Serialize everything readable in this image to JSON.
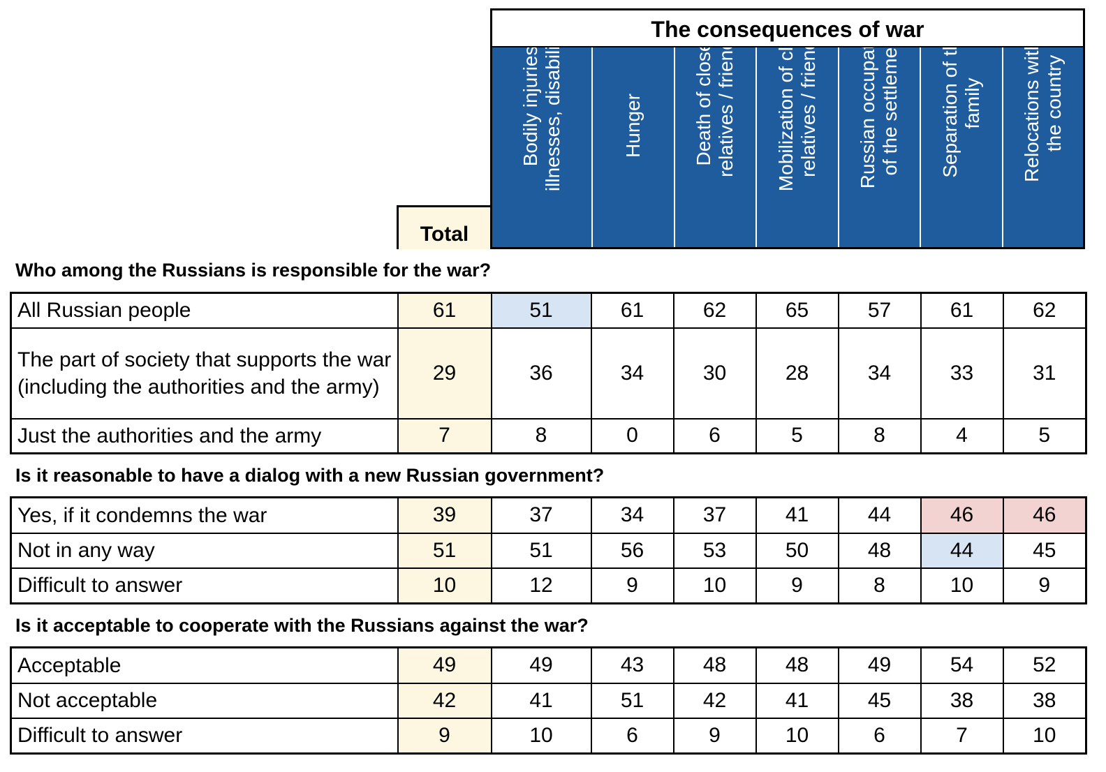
{
  "chart_data": {
    "type": "table",
    "group_title": "The consequences of war",
    "total_label": "Total",
    "columns": [
      "Bodily injuries, illnesses, disabilities",
      "Hunger",
      "Death of close relatives / friends",
      "Mobilization of close relatives / friends",
      "Russian occupation of the settlement",
      "Separation of the family",
      "Relocations within the country"
    ],
    "sections": [
      {
        "question": "Who among the Russians is responsible for the war?",
        "rows": [
          {
            "label": "All Russian people",
            "total": "61",
            "values": [
              "51",
              "61",
              "62",
              "65",
              "57",
              "61",
              "62"
            ],
            "highlight": [
              "blue",
              "",
              "",
              "",
              "",
              "",
              ""
            ]
          },
          {
            "label": "The part of society that supports the war (including the authorities and the army)",
            "total": "29",
            "values": [
              "36",
              "34",
              "30",
              "28",
              "34",
              "33",
              "31"
            ],
            "highlight": [
              "",
              "",
              "",
              "",
              "",
              "",
              ""
            ]
          },
          {
            "label": "Just the authorities and the army",
            "total": "7",
            "values": [
              "8",
              "0",
              "6",
              "5",
              "8",
              "4",
              "5"
            ],
            "highlight": [
              "",
              "",
              "",
              "",
              "",
              "",
              ""
            ]
          }
        ]
      },
      {
        "question": "Is it reasonable to have a dialog with a new Russian government?",
        "rows": [
          {
            "label": "Yes, if it condemns the war",
            "total": "39",
            "values": [
              "37",
              "34",
              "37",
              "41",
              "44",
              "46",
              "46"
            ],
            "highlight": [
              "",
              "",
              "",
              "",
              "",
              "red",
              "red"
            ]
          },
          {
            "label": "Not in any way",
            "total": "51",
            "values": [
              "51",
              "56",
              "53",
              "50",
              "48",
              "44",
              "45"
            ],
            "highlight": [
              "",
              "",
              "",
              "",
              "",
              "blue",
              ""
            ]
          },
          {
            "label": "Difficult to answer",
            "total": "10",
            "values": [
              "12",
              "9",
              "10",
              "9",
              "8",
              "10",
              "9"
            ],
            "highlight": [
              "",
              "",
              "",
              "",
              "",
              "",
              ""
            ]
          }
        ]
      },
      {
        "question": "Is it acceptable to cooperate with the Russians against the war?",
        "rows": [
          {
            "label": "Acceptable",
            "total": "49",
            "values": [
              "49",
              "43",
              "48",
              "48",
              "49",
              "54",
              "52"
            ],
            "highlight": [
              "",
              "",
              "",
              "",
              "",
              "",
              ""
            ]
          },
          {
            "label": "Not acceptable",
            "total": "42",
            "values": [
              "41",
              "51",
              "42",
              "41",
              "45",
              "38",
              "38"
            ],
            "highlight": [
              "",
              "",
              "",
              "",
              "",
              "",
              ""
            ]
          },
          {
            "label": "Difficult to answer",
            "total": "9",
            "values": [
              "10",
              "6",
              "9",
              "10",
              "6",
              "7",
              "10"
            ],
            "highlight": [
              "",
              "",
              "",
              "",
              "",
              "",
              ""
            ]
          }
        ]
      }
    ],
    "colors": {
      "header_bg": "#1f5c9e",
      "total_bg": "#fdf6e0",
      "highlight_blue": "#d6e4f3",
      "highlight_red": "#f3d2d2"
    }
  }
}
